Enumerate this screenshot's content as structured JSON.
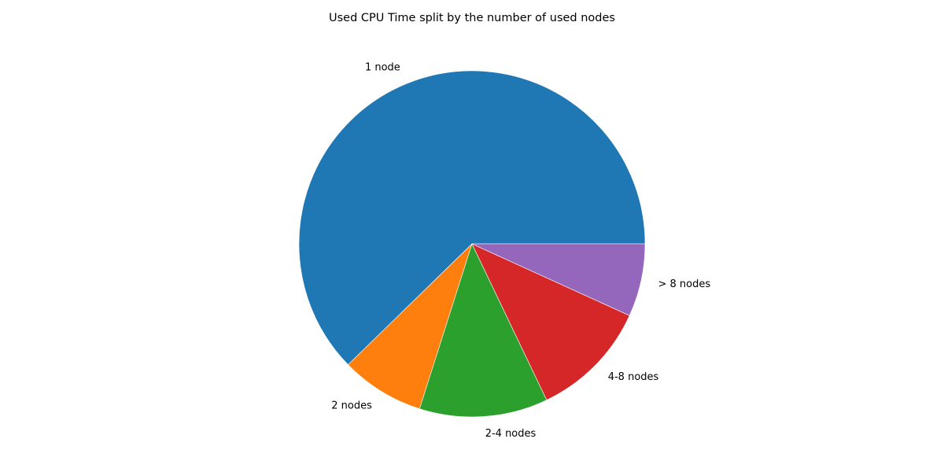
{
  "chart_data": {
    "type": "pie",
    "title": "Used CPU Time split by the number of used nodes",
    "start_angle_deg": 0,
    "direction": "counterclockwise",
    "slices": [
      {
        "label": "1 node",
        "value": 62.3,
        "color": "#1f77b4"
      },
      {
        "label": "2 nodes",
        "value": 7.8,
        "color": "#ff7f0e"
      },
      {
        "label": "2-4 nodes",
        "value": 12.0,
        "color": "#2ca02c"
      },
      {
        "label": "4-8 nodes",
        "value": 11.1,
        "color": "#d62728"
      },
      {
        "label": "> 8 nodes",
        "value": 6.8,
        "color": "#9467bd"
      }
    ]
  }
}
